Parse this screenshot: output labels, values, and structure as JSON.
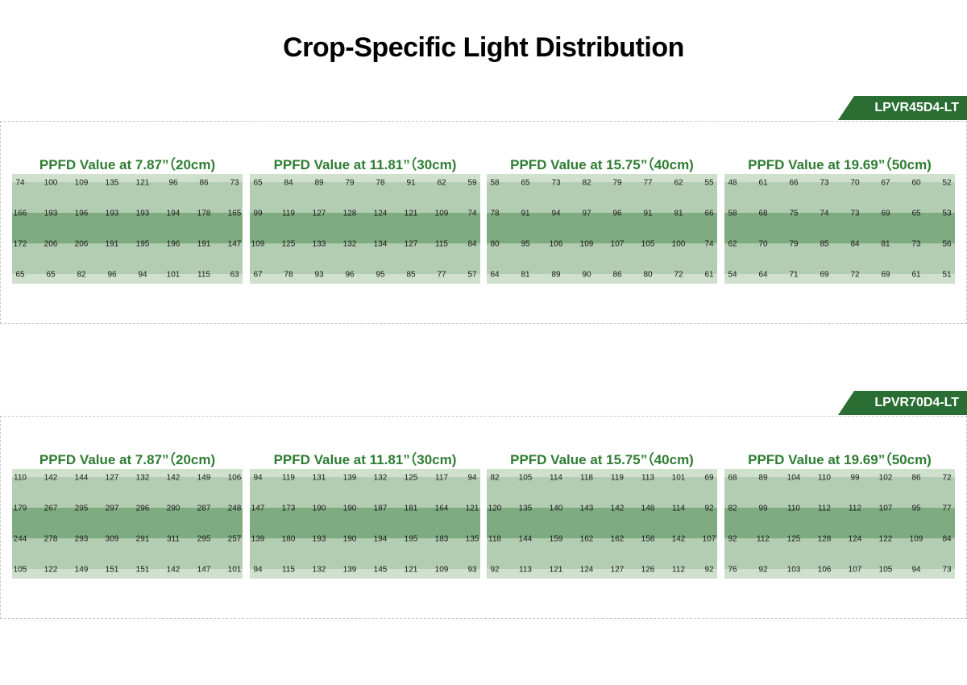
{
  "title": "Crop-Specific Light Distribution",
  "colors": {
    "accent_green": "#2e7d32",
    "tag_green": "#2a6e34",
    "band_light": "#cfe1cd",
    "band_mid": "#b3cdb2",
    "band_dark": "#7fab80"
  },
  "sections": [
    {
      "model": "LPVR45D4-LT",
      "panels": [
        {
          "title": "PPFD Value at 7.87”（20cm)"
        },
        {
          "title": "PPFD Value at 11.81”（30cm)"
        },
        {
          "title": "PPFD Value at 15.75”（40cm)"
        },
        {
          "title": "PPFD Value at 19.69”（50cm)"
        }
      ]
    },
    {
      "model": "LPVR70D4-LT",
      "panels": [
        {
          "title": "PPFD Value at 7.87”（20cm)"
        },
        {
          "title": "PPFD Value at 11.81”（30cm)"
        },
        {
          "title": "PPFD Value at 15.75”（40cm)"
        },
        {
          "title": "PPFD Value at 19.69”（50cm)"
        }
      ]
    }
  ],
  "chart_data": [
    {
      "type": "heatmap",
      "title": "PPFD Value at 7.87”（20cm)",
      "group": "LPVR45D4-LT",
      "rows": [
        [
          74,
          100,
          109,
          135,
          121,
          96,
          86,
          73
        ],
        [
          166,
          193,
          196,
          193,
          193,
          194,
          178,
          165
        ],
        [
          172,
          206,
          206,
          191,
          195,
          196,
          191,
          147
        ],
        [
          65,
          65,
          82,
          96,
          94,
          101,
          115,
          63
        ]
      ]
    },
    {
      "type": "heatmap",
      "title": "PPFD Value at 11.81”（30cm)",
      "group": "LPVR45D4-LT",
      "rows": [
        [
          65,
          84,
          89,
          79,
          78,
          91,
          62,
          59
        ],
        [
          99,
          119,
          127,
          128,
          124,
          121,
          109,
          74
        ],
        [
          109,
          125,
          133,
          132,
          134,
          127,
          115,
          84
        ],
        [
          67,
          78,
          93,
          96,
          95,
          85,
          77,
          57
        ]
      ]
    },
    {
      "type": "heatmap",
      "title": "PPFD Value at 15.75”（40cm)",
      "group": "LPVR45D4-LT",
      "rows": [
        [
          58,
          65,
          73,
          82,
          79,
          77,
          62,
          55
        ],
        [
          78,
          91,
          94,
          97,
          96,
          91,
          81,
          66
        ],
        [
          80,
          95,
          106,
          109,
          107,
          105,
          100,
          74
        ],
        [
          64,
          81,
          89,
          90,
          86,
          80,
          72,
          61
        ]
      ]
    },
    {
      "type": "heatmap",
      "title": "PPFD Value at 19.69”（50cm)",
      "group": "LPVR45D4-LT",
      "rows": [
        [
          48,
          61,
          66,
          73,
          70,
          67,
          60,
          52
        ],
        [
          58,
          68,
          75,
          74,
          73,
          69,
          65,
          53
        ],
        [
          62,
          70,
          79,
          85,
          84,
          81,
          73,
          56
        ],
        [
          54,
          64,
          71,
          69,
          72,
          69,
          61,
          51
        ]
      ]
    },
    {
      "type": "heatmap",
      "title": "PPFD Value at 7.87”（20cm)",
      "group": "LPVR70D4-LT",
      "rows": [
        [
          110,
          142,
          144,
          127,
          132,
          142,
          149,
          106
        ],
        [
          179,
          267,
          295,
          297,
          296,
          290,
          287,
          248
        ],
        [
          244,
          278,
          293,
          309,
          291,
          311,
          295,
          257
        ],
        [
          105,
          122,
          149,
          151,
          151,
          142,
          147,
          101
        ]
      ]
    },
    {
      "type": "heatmap",
      "title": "PPFD Value at 11.81”（30cm)",
      "group": "LPVR70D4-LT",
      "rows": [
        [
          94,
          119,
          131,
          139,
          132,
          125,
          117,
          94
        ],
        [
          147,
          173,
          190,
          190,
          187,
          181,
          164,
          121
        ],
        [
          139,
          180,
          193,
          190,
          194,
          195,
          183,
          135
        ],
        [
          94,
          115,
          132,
          139,
          145,
          121,
          109,
          93
        ]
      ]
    },
    {
      "type": "heatmap",
      "title": "PPFD Value at 15.75”（40cm)",
      "group": "LPVR70D4-LT",
      "rows": [
        [
          82,
          105,
          114,
          118,
          119,
          113,
          101,
          69
        ],
        [
          120,
          135,
          140,
          143,
          142,
          148,
          114,
          92
        ],
        [
          118,
          144,
          159,
          162,
          162,
          158,
          142,
          107
        ],
        [
          92,
          113,
          121,
          124,
          127,
          126,
          112,
          92
        ]
      ]
    },
    {
      "type": "heatmap",
      "title": "PPFD Value at 19.69”（50cm)",
      "group": "LPVR70D4-LT",
      "rows": [
        [
          68,
          89,
          104,
          110,
          99,
          102,
          86,
          72
        ],
        [
          82,
          99,
          110,
          112,
          112,
          107,
          95,
          77
        ],
        [
          92,
          112,
          125,
          128,
          124,
          122,
          109,
          84
        ],
        [
          76,
          92,
          103,
          106,
          107,
          105,
          94,
          73
        ]
      ]
    }
  ]
}
